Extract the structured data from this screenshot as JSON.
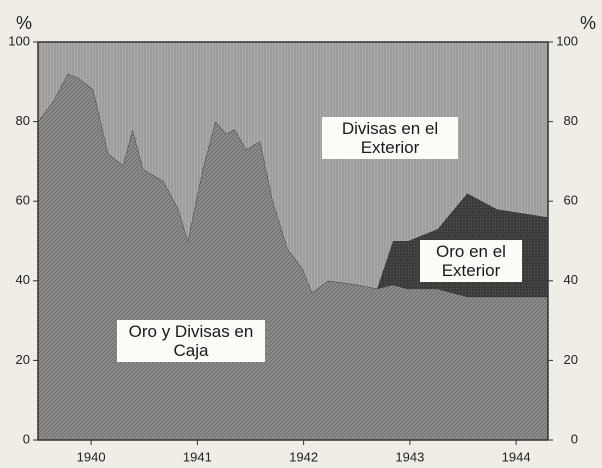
{
  "chart_data": {
    "type": "stacked_area",
    "y_unit": "%",
    "x": [
      1939.5,
      1939.64,
      1939.78,
      1939.88,
      1940.02,
      1940.16,
      1940.3,
      1940.39,
      1940.49,
      1940.68,
      1940.82,
      1940.91,
      1941.05,
      1941.17,
      1941.27,
      1941.35,
      1941.46,
      1941.59,
      1941.71,
      1941.85,
      1941.99,
      1942.08,
      1942.23,
      1942.51,
      1942.69,
      1942.84,
      1942.98,
      1943.26,
      1943.54,
      1943.82,
      1944.3
    ],
    "series": [
      {
        "name": "Oro y Divisas en Caja",
        "color": "#8c8c8a",
        "values": [
          80,
          85,
          92,
          91,
          88,
          72,
          69,
          78,
          68,
          65,
          58,
          50,
          68,
          80,
          77,
          78,
          73,
          75,
          60,
          48,
          43,
          37,
          40,
          39,
          38,
          39,
          38,
          38,
          36,
          36,
          36
        ]
      },
      {
        "name": "Oro en el Exterior",
        "color": "#3c3c3c",
        "values": [
          0,
          0,
          0,
          0,
          0,
          0,
          0,
          0,
          0,
          0,
          0,
          0,
          0,
          0,
          0,
          0,
          0,
          0,
          0,
          0,
          0,
          0,
          0,
          0,
          0,
          11,
          12,
          15,
          26,
          22,
          20
        ]
      },
      {
        "name": "Divisas en el Exterior",
        "color": "#acacaa",
        "values": [
          20,
          15,
          8,
          9,
          12,
          28,
          31,
          22,
          32,
          35,
          42,
          50,
          32,
          20,
          23,
          22,
          27,
          25,
          40,
          52,
          57,
          63,
          60,
          61,
          62,
          50,
          50,
          47,
          38,
          42,
          44
        ]
      }
    ],
    "xlim": [
      1939.5,
      1944.3
    ],
    "xticks": [
      1940,
      1941,
      1942,
      1943,
      1944
    ],
    "ylim": [
      0,
      100
    ],
    "yticks": [
      0,
      20,
      40,
      60,
      80,
      100
    ]
  }
}
